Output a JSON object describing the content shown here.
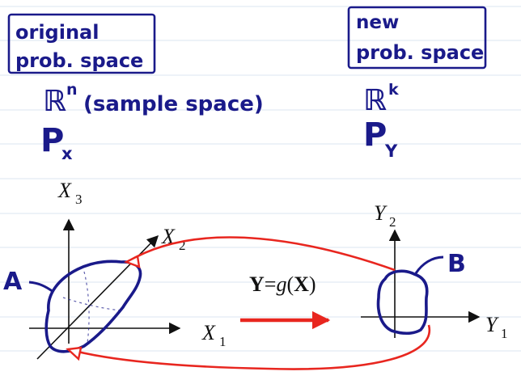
{
  "original": {
    "box_line1": "original",
    "box_line2": "prob. space",
    "sample_space_symbol": "ℝ",
    "sample_space_exp": "n",
    "sample_space_note": "(sample space)",
    "prob_symbol": "P",
    "prob_sub": "x"
  },
  "new": {
    "box_line1": "new",
    "box_line2": "prob. space",
    "sample_space_symbol": "ℝ",
    "sample_space_exp": "k",
    "prob_symbol": "P",
    "prob_sub": "Y"
  },
  "left_axes": {
    "x3": "X",
    "x3_sub": "3",
    "x2": "X",
    "x2_sub": "2",
    "x1": "X",
    "x1_sub": "1",
    "set_label": "A"
  },
  "right_axes": {
    "y2": "Y",
    "y2_sub": "2",
    "y1": "Y",
    "y1_sub": "1",
    "set_label": "B"
  },
  "mapping": {
    "y": "Y",
    "eq": "=",
    "g": "g",
    "open": "(",
    "x": "X",
    "close": ")"
  },
  "colors": {
    "ink": "#1a1a8a",
    "red": "#e8261f",
    "axis": "#111111",
    "rule": "#dbe6f2"
  }
}
